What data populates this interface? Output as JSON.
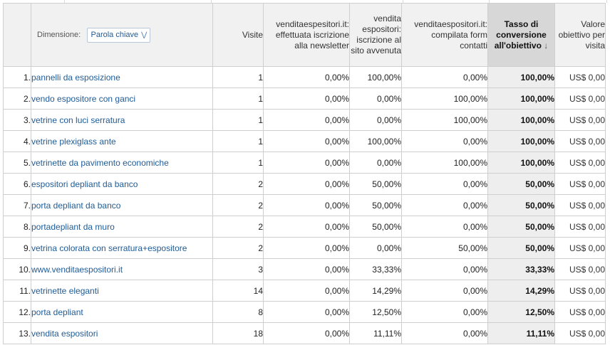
{
  "header": {
    "dimension_label": "Dimensione:",
    "dimension_value": "Parola chiave",
    "col_visits": "Visite",
    "col_goal1": "venditaespesitori.it: effettuata iscrizione alla newsletter",
    "col_goal2": "vendita espositori: iscrizione al sito avvenuta",
    "col_goal3": "venditaespositori.it: compilata form contatti",
    "col_rate": "Tasso di conversione all'obiettivo",
    "col_value": "Valore obiettivo per visita"
  },
  "rows": [
    {
      "n": "1.",
      "kw": "pannelli da esposizione",
      "visits": "1",
      "g1": "0,00%",
      "g2": "100,00%",
      "g3": "0,00%",
      "rate": "100,00%",
      "value": "US$ 0,00"
    },
    {
      "n": "2.",
      "kw": "vendo espositore con ganci",
      "visits": "1",
      "g1": "0,00%",
      "g2": "0,00%",
      "g3": "100,00%",
      "rate": "100,00%",
      "value": "US$ 0,00"
    },
    {
      "n": "3.",
      "kw": "vetrine con luci serratura",
      "visits": "1",
      "g1": "0,00%",
      "g2": "0,00%",
      "g3": "100,00%",
      "rate": "100,00%",
      "value": "US$ 0,00"
    },
    {
      "n": "4.",
      "kw": "vetrine plexiglass ante",
      "visits": "1",
      "g1": "0,00%",
      "g2": "100,00%",
      "g3": "0,00%",
      "rate": "100,00%",
      "value": "US$ 0,00"
    },
    {
      "n": "5.",
      "kw": "vetrinette da pavimento economiche",
      "visits": "1",
      "g1": "0,00%",
      "g2": "0,00%",
      "g3": "100,00%",
      "rate": "100,00%",
      "value": "US$ 0,00"
    },
    {
      "n": "6.",
      "kw": "espositori depliant da banco",
      "visits": "2",
      "g1": "0,00%",
      "g2": "50,00%",
      "g3": "0,00%",
      "rate": "50,00%",
      "value": "US$ 0,00"
    },
    {
      "n": "7.",
      "kw": "porta depliant da banco",
      "visits": "2",
      "g1": "0,00%",
      "g2": "50,00%",
      "g3": "0,00%",
      "rate": "50,00%",
      "value": "US$ 0,00"
    },
    {
      "n": "8.",
      "kw": "portadepliant da muro",
      "visits": "2",
      "g1": "0,00%",
      "g2": "50,00%",
      "g3": "0,00%",
      "rate": "50,00%",
      "value": "US$ 0,00"
    },
    {
      "n": "9.",
      "kw": "vetrina colorata con serratura+espositore",
      "visits": "2",
      "g1": "0,00%",
      "g2": "0,00%",
      "g3": "50,00%",
      "rate": "50,00%",
      "value": "US$ 0,00"
    },
    {
      "n": "10.",
      "kw": "www.venditaespositori.it",
      "visits": "3",
      "g1": "0,00%",
      "g2": "33,33%",
      "g3": "0,00%",
      "rate": "33,33%",
      "value": "US$ 0,00"
    },
    {
      "n": "11.",
      "kw": "vetrinette eleganti",
      "visits": "14",
      "g1": "0,00%",
      "g2": "14,29%",
      "g3": "0,00%",
      "rate": "14,29%",
      "value": "US$ 0,00"
    },
    {
      "n": "12.",
      "kw": "porta depliant",
      "visits": "8",
      "g1": "0,00%",
      "g2": "12,50%",
      "g3": "0,00%",
      "rate": "12,50%",
      "value": "US$ 0,00"
    },
    {
      "n": "13.",
      "kw": "vendita espositori",
      "visits": "18",
      "g1": "0,00%",
      "g2": "11,11%",
      "g3": "0,00%",
      "rate": "11,11%",
      "value": "US$ 0,00"
    }
  ]
}
